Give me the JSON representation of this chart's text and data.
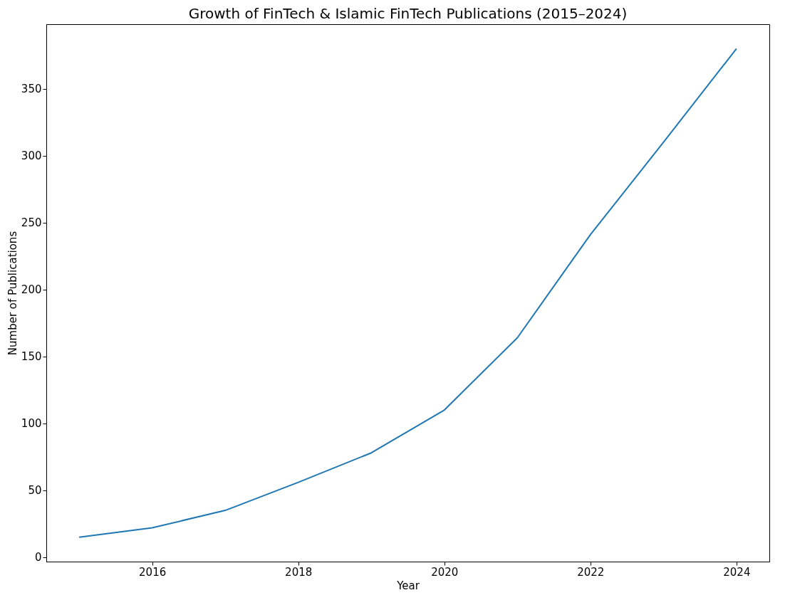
{
  "chart_data": {
    "type": "line",
    "title": "Growth of FinTech & Islamic FinTech Publications (2015–2024)",
    "xlabel": "Year",
    "ylabel": "Number of Publications",
    "x": [
      2015,
      2016,
      2017,
      2018,
      2019,
      2020,
      2021,
      2022,
      2023,
      2024
    ],
    "series": [
      {
        "color": "#1f77b4",
        "values": [
          15,
          22,
          35,
          56,
          78,
          110,
          164,
          241,
          310,
          380
        ]
      }
    ],
    "xlim": [
      2014.55,
      2024.45
    ],
    "xticks": [
      2016,
      2018,
      2020,
      2022,
      2024
    ],
    "ylim": [
      -3.25,
      398.25
    ],
    "yticks": [
      0,
      50,
      100,
      150,
      200,
      250,
      300,
      350
    ],
    "grid": false,
    "marker": "none",
    "line_style": "solid"
  }
}
